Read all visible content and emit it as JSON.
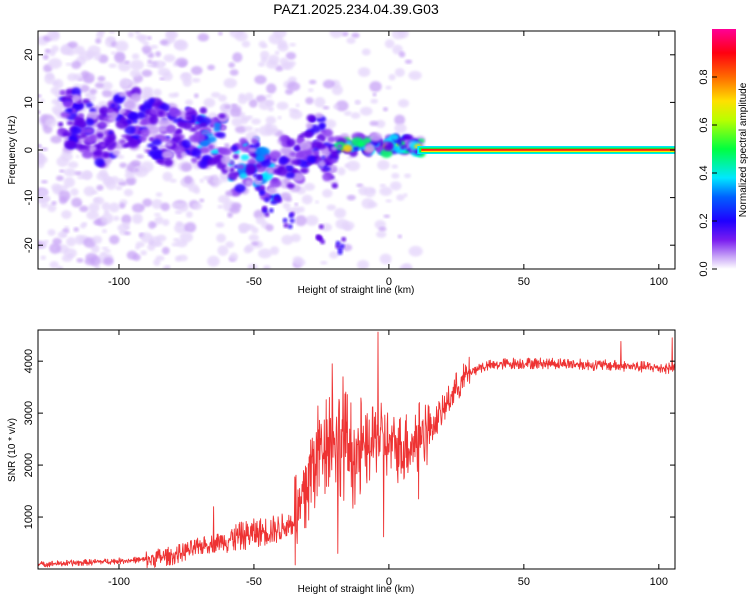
{
  "title": "PAZ1.2025.234.04.39.G03",
  "chart_data": [
    {
      "type": "heatmap",
      "xlabel": "Height of straight line (km)",
      "ylabel": "Frequency (Hz)",
      "xlim": [
        -130,
        106
      ],
      "ylim": [
        -25,
        25
      ],
      "xticks": [
        -100,
        -50,
        0,
        50,
        100
      ],
      "yticks": [
        -20,
        -10,
        0,
        10,
        20
      ],
      "xtick_labels": [
        "-100",
        "-50",
        "0",
        "50",
        "100"
      ],
      "ytick_labels": [
        "-20",
        "-10",
        "0",
        "10",
        "20"
      ],
      "colorbar": {
        "label": "Normalized spectral amplitude",
        "range": [
          0,
          1
        ],
        "ticks": [
          "0.0",
          "0.2",
          "0.4",
          "0.6",
          "0.8"
        ],
        "colors": [
          "#ffffff",
          "#9b59f0",
          "#4b00e0",
          "#0000ff",
          "#00ffff",
          "#00ff00",
          "#ffff00",
          "#ff7f00",
          "#ff0000",
          "#ff0090"
        ]
      },
      "ridge": {
        "description_x_start": 12,
        "frequency": 0,
        "amplitude": 1.0
      }
    },
    {
      "type": "line",
      "xlabel": "Height of straight line (km)",
      "ylabel": "SNR (10 * v/v)",
      "xlim": [
        -130,
        106
      ],
      "ylim": [
        0,
        4600
      ],
      "xticks": [
        -100,
        -50,
        0,
        50,
        100
      ],
      "yticks": [
        1000,
        2000,
        3000,
        4000
      ],
      "xtick_labels": [
        "-100",
        "-50",
        "0",
        "50",
        "100"
      ],
      "ytick_labels": [
        "1000",
        "2000",
        "3000",
        "4000"
      ],
      "line_color": "#ee3333",
      "anchors": [
        [
          -130,
          90
        ],
        [
          -110,
          130
        ],
        [
          -90,
          180
        ],
        [
          -80,
          260
        ],
        [
          -70,
          430
        ],
        [
          -60,
          560
        ],
        [
          -50,
          690
        ],
        [
          -40,
          780
        ],
        [
          -34,
          950
        ],
        [
          -31,
          1500
        ],
        [
          -27,
          2200
        ],
        [
          -23,
          2600
        ],
        [
          -18,
          2500
        ],
        [
          -14,
          2250
        ],
        [
          -8,
          2300
        ],
        [
          -4,
          2550
        ],
        [
          0,
          2400
        ],
        [
          5,
          2300
        ],
        [
          10,
          2500
        ],
        [
          15,
          2700
        ],
        [
          20,
          3050
        ],
        [
          25,
          3500
        ],
        [
          30,
          3800
        ],
        [
          35,
          3900
        ],
        [
          45,
          3960
        ],
        [
          60,
          3960
        ],
        [
          80,
          3920
        ],
        [
          106,
          3860
        ]
      ],
      "spikes": [
        {
          "x": -4,
          "y": 4560
        },
        {
          "x": -2,
          "y": 620
        },
        {
          "x": -21,
          "y": 3950
        },
        {
          "x": -19,
          "y": 300
        },
        {
          "x": -17,
          "y": 3700
        },
        {
          "x": 11,
          "y": 1350
        },
        {
          "x": 86,
          "y": 4380
        },
        {
          "x": 105,
          "y": 4450
        },
        {
          "x": -65,
          "y": 1200
        }
      ]
    }
  ]
}
